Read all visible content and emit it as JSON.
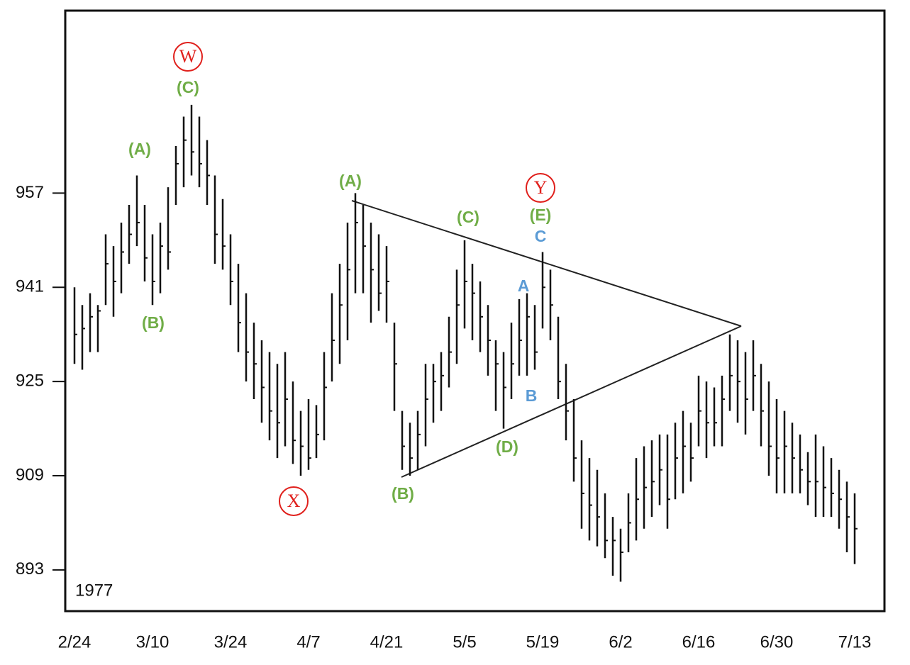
{
  "chart_data": {
    "type": "ohlc",
    "year_label": "1977",
    "categories": [
      "2/24",
      null,
      null,
      null,
      null,
      null,
      null,
      null,
      null,
      null,
      "3/10",
      null,
      null,
      null,
      null,
      null,
      null,
      null,
      null,
      null,
      "3/24",
      null,
      null,
      null,
      null,
      null,
      null,
      null,
      null,
      null,
      "4/7",
      null,
      null,
      null,
      null,
      null,
      null,
      null,
      null,
      null,
      "4/21",
      null,
      null,
      null,
      null,
      null,
      null,
      null,
      null,
      null,
      "5/5",
      null,
      null,
      null,
      null,
      null,
      null,
      null,
      null,
      null,
      "5/19",
      null,
      null,
      null,
      null,
      null,
      null,
      null,
      null,
      null,
      "6/2",
      null,
      null,
      null,
      null,
      null,
      null,
      null,
      null,
      null,
      "6/16",
      null,
      null,
      null,
      null,
      null,
      null,
      null,
      null,
      null,
      "6/30",
      null,
      null,
      null,
      null,
      null,
      null,
      null,
      null,
      null,
      "7/13"
    ],
    "high": [
      941,
      938,
      940,
      938,
      950,
      948,
      952,
      955,
      960,
      955,
      950,
      952,
      958,
      965,
      970,
      972,
      970,
      966,
      960,
      956,
      950,
      945,
      940,
      935,
      932,
      930,
      928,
      930,
      925,
      920,
      922,
      921,
      930,
      940,
      945,
      952,
      957,
      955,
      952,
      950,
      948,
      935,
      920,
      918,
      920,
      928,
      928,
      930,
      936,
      944,
      949,
      945,
      942,
      938,
      932,
      930,
      935,
      939,
      940,
      938,
      947,
      944,
      936,
      928,
      922,
      915,
      912,
      910,
      906,
      902,
      900,
      906,
      912,
      914,
      915,
      916,
      916,
      918,
      920,
      918,
      926,
      925,
      924,
      926,
      933,
      932,
      930,
      932,
      928,
      925,
      922,
      920,
      918,
      916,
      913,
      916,
      914,
      912,
      910,
      908,
      906
    ],
    "low": [
      928,
      927,
      930,
      930,
      938,
      936,
      940,
      945,
      948,
      942,
      938,
      940,
      944,
      955,
      958,
      960,
      958,
      955,
      945,
      944,
      938,
      930,
      925,
      922,
      918,
      915,
      912,
      914,
      911,
      909,
      910,
      912,
      915,
      925,
      928,
      932,
      940,
      940,
      935,
      937,
      935,
      920,
      910,
      909,
      910,
      914,
      918,
      920,
      924,
      928,
      934,
      932,
      930,
      926,
      920,
      917,
      922,
      926,
      926,
      927,
      934,
      932,
      922,
      915,
      908,
      900,
      898,
      897,
      895,
      892,
      891,
      896,
      898,
      900,
      902,
      904,
      900,
      905,
      906,
      908,
      914,
      912,
      914,
      914,
      920,
      918,
      916,
      920,
      914,
      909,
      906,
      906,
      906,
      906,
      904,
      902,
      902,
      902,
      900,
      896,
      894
    ],
    "close": [
      933,
      934,
      936,
      937,
      945,
      942,
      947,
      950,
      952,
      946,
      942,
      948,
      947,
      962,
      966,
      964,
      962,
      960,
      950,
      948,
      942,
      935,
      930,
      928,
      924,
      920,
      918,
      922,
      915,
      914,
      912,
      916,
      924,
      932,
      938,
      944,
      952,
      948,
      944,
      940,
      942,
      928,
      914,
      912,
      916,
      922,
      925,
      926,
      930,
      938,
      942,
      940,
      936,
      932,
      928,
      924,
      928,
      932,
      936,
      930,
      941,
      938,
      925,
      920,
      912,
      906,
      904,
      902,
      898,
      898,
      896,
      901,
      905,
      907,
      908,
      910,
      905,
      912,
      914,
      912,
      920,
      918,
      918,
      922,
      926,
      925,
      922,
      926,
      920,
      914,
      912,
      914,
      912,
      910,
      908,
      908,
      907,
      906,
      905,
      902,
      900
    ],
    "color": "#111111",
    "ylim": [
      886,
      988
    ],
    "yticks": [
      893,
      909,
      925,
      941,
      957
    ],
    "annotations": [
      {
        "text": "W",
        "color": "#e0201c",
        "circled": true
      },
      {
        "text": "(C)",
        "color": "#70ad47",
        "circled": false
      },
      {
        "text": "(A)",
        "color": "#70ad47",
        "circled": false
      },
      {
        "text": "(B)",
        "color": "#70ad47",
        "circled": false
      },
      {
        "text": "X",
        "color": "#e0201c",
        "circled": true
      },
      {
        "text": "(A)",
        "color": "#70ad47",
        "circled": false
      },
      {
        "text": "(B)",
        "color": "#70ad47",
        "circled": false
      },
      {
        "text": "(C)",
        "color": "#70ad47",
        "circled": false
      },
      {
        "text": "Y",
        "color": "#e0201c",
        "circled": true
      },
      {
        "text": "(E)",
        "color": "#70ad47",
        "circled": false
      },
      {
        "text": "C",
        "color": "#5b9bd5",
        "circled": false
      },
      {
        "text": "A",
        "color": "#5b9bd5",
        "circled": false
      },
      {
        "text": "B",
        "color": "#5b9bd5",
        "circled": false
      },
      {
        "text": "(D)",
        "color": "#70ad47",
        "circled": false
      }
    ]
  }
}
